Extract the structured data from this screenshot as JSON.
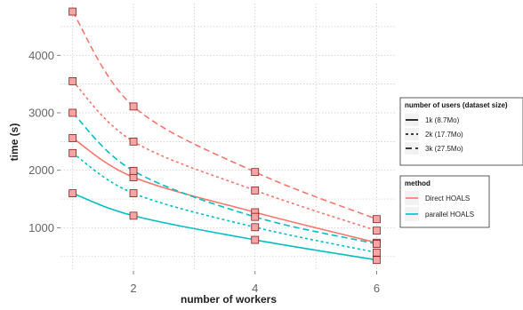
{
  "chart_data": {
    "type": "line",
    "xlabel": "number of workers",
    "ylabel": "time (s)",
    "x_ticks": [
      "2",
      "4",
      "6"
    ],
    "y_ticks": [
      "1000",
      "2000",
      "3000",
      "4000"
    ],
    "xlim": [
      0.8,
      6.3
    ],
    "ylim": [
      250,
      4900
    ],
    "grid": true,
    "legend_placement": "right",
    "legends": [
      {
        "title": "number of users (dataset size)",
        "entries": [
          {
            "label": "1k (8.7Mo)",
            "dash": "solid"
          },
          {
            "label": "2k (17.7Mo)",
            "dash": "dotted"
          },
          {
            "label": "3k (27.5Mo)",
            "dash": "dashed"
          }
        ]
      },
      {
        "title": "method",
        "entries": [
          {
            "label": "Direct HOALS",
            "color": "#F8766D"
          },
          {
            "label": "parallel HOALS",
            "color": "#00BFC4"
          }
        ]
      }
    ],
    "x": [
      1,
      2,
      4,
      6
    ],
    "series": [
      {
        "method": "Direct HOALS",
        "users": "3k (27.5Mo)",
        "color": "#F8766D",
        "dash": "dashed",
        "values": [
          4760,
          3110,
          1970,
          1150
        ]
      },
      {
        "method": "Direct HOALS",
        "users": "2k (17.7Mo)",
        "color": "#F8766D",
        "dash": "dotted",
        "values": [
          3550,
          2500,
          1650,
          950
        ]
      },
      {
        "method": "Direct HOALS",
        "users": "1k (8.7Mo)",
        "color": "#F8766D",
        "dash": "solid",
        "values": [
          2560,
          1880,
          1270,
          740
        ]
      },
      {
        "method": "parallel HOALS",
        "users": "3k (27.5Mo)",
        "color": "#00BFC4",
        "dash": "dashed",
        "values": [
          3000,
          1990,
          1190,
          720
        ]
      },
      {
        "method": "parallel HOALS",
        "users": "2k (17.7Mo)",
        "color": "#00BFC4",
        "dash": "dotted",
        "values": [
          2300,
          1600,
          1010,
          570
        ]
      },
      {
        "method": "parallel HOALS",
        "users": "1k (8.7Mo)",
        "color": "#00BFC4",
        "dash": "solid",
        "values": [
          1600,
          1210,
          790,
          440
        ]
      }
    ],
    "marker": {
      "shape": "square",
      "fill": "#F4A6A6",
      "stroke": "#8B1A1A"
    }
  }
}
